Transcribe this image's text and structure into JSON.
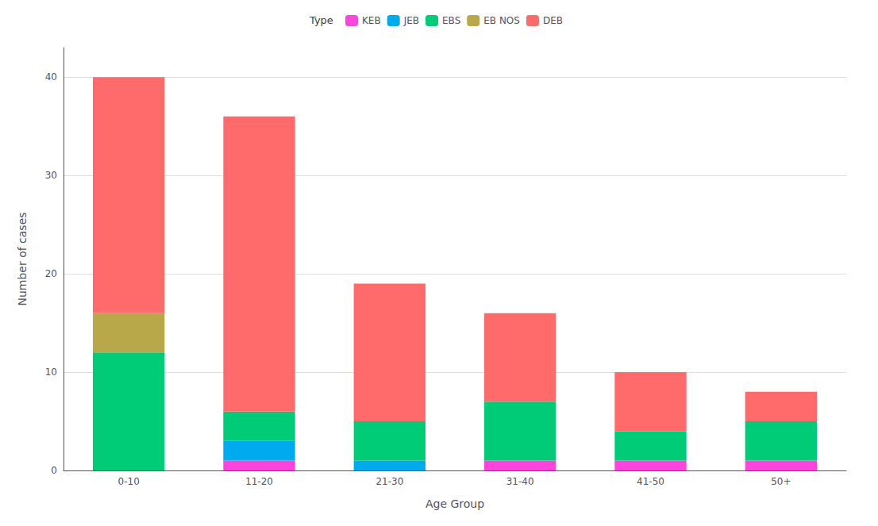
{
  "chart_data": {
    "type": "bar",
    "stacked": true,
    "categories": [
      "0-10",
      "11-20",
      "21-30",
      "31-40",
      "41-50",
      "50+"
    ],
    "series": [
      {
        "name": "KEB",
        "color": "#FF44DD",
        "values": [
          0,
          1,
          0,
          1,
          1,
          1
        ]
      },
      {
        "name": "JEB",
        "color": "#00AAEE",
        "values": [
          0,
          2,
          1,
          0,
          0,
          0
        ]
      },
      {
        "name": "EBS",
        "color": "#00CC77",
        "values": [
          12,
          3,
          4,
          6,
          3,
          4
        ]
      },
      {
        "name": "EB NOS",
        "color": "#B8A84A",
        "values": [
          4,
          0,
          0,
          0,
          0,
          0
        ]
      },
      {
        "name": "DEB",
        "color": "#FF6B6B",
        "values": [
          24,
          30,
          14,
          9,
          6,
          3
        ]
      }
    ],
    "xlabel": "Age Group",
    "ylabel": "Number of cases",
    "ylim": [
      0,
      43
    ],
    "yticks": [
      0,
      10,
      20,
      30,
      40
    ],
    "grid": true,
    "legend": "upper center",
    "legend_title": "Type"
  }
}
